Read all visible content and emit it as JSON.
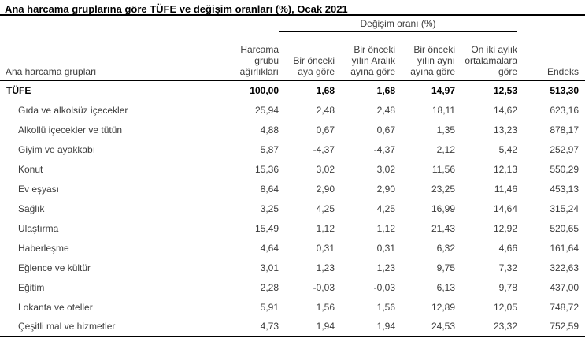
{
  "title": "Ana harcama gruplarına göre TÜFE ve değişim oranları (%), Ocak 2021",
  "colors": {
    "text": "#3c3c3c",
    "bold_text": "#000000",
    "background": "#ffffff",
    "rule": "#000000"
  },
  "table": {
    "group_header": "Değişim oranı (%)",
    "col_headers": {
      "groups": "Ana harcama grupları",
      "weights": "Harcama\ngrubu\nağırlıkları",
      "prev_month": "Bir önceki\naya göre",
      "prev_december": "Bir önceki\nyılın Aralık\nayına göre",
      "same_month_prev_year": "Bir önceki\nyılın aynı\nayına göre",
      "twelve_month_avg": "On iki aylık\nortalamalara\ngöre",
      "index": "Endeks"
    },
    "rows": [
      {
        "label": "TÜFE",
        "bold": true,
        "indent": false,
        "values": [
          "100,00",
          "1,68",
          "1,68",
          "14,97",
          "12,53",
          "513,30"
        ]
      },
      {
        "label": "Gıda ve alkolsüz içecekler",
        "bold": false,
        "indent": true,
        "values": [
          "25,94",
          "2,48",
          "2,48",
          "18,11",
          "14,62",
          "623,16"
        ]
      },
      {
        "label": "Alkollü içecekler ve tütün",
        "bold": false,
        "indent": true,
        "values": [
          "4,88",
          "0,67",
          "0,67",
          "1,35",
          "13,23",
          "878,17"
        ]
      },
      {
        "label": "Giyim ve ayakkabı",
        "bold": false,
        "indent": true,
        "values": [
          "5,87",
          "-4,37",
          "-4,37",
          "2,12",
          "5,42",
          "252,97"
        ]
      },
      {
        "label": "Konut",
        "bold": false,
        "indent": true,
        "values": [
          "15,36",
          "3,02",
          "3,02",
          "11,56",
          "12,13",
          "550,29"
        ]
      },
      {
        "label": "Ev eşyası",
        "bold": false,
        "indent": true,
        "values": [
          "8,64",
          "2,90",
          "2,90",
          "23,25",
          "11,46",
          "453,13"
        ]
      },
      {
        "label": "Sağlık",
        "bold": false,
        "indent": true,
        "values": [
          "3,25",
          "4,25",
          "4,25",
          "16,99",
          "14,64",
          "315,24"
        ]
      },
      {
        "label": "Ulaştırma",
        "bold": false,
        "indent": true,
        "values": [
          "15,49",
          "1,12",
          "1,12",
          "21,43",
          "12,92",
          "520,65"
        ]
      },
      {
        "label": "Haberleşme",
        "bold": false,
        "indent": true,
        "values": [
          "4,64",
          "0,31",
          "0,31",
          "6,32",
          "4,66",
          "161,64"
        ]
      },
      {
        "label": "Eğlence ve kültür",
        "bold": false,
        "indent": true,
        "values": [
          "3,01",
          "1,23",
          "1,23",
          "9,75",
          "7,32",
          "322,63"
        ]
      },
      {
        "label": "Eğitim",
        "bold": false,
        "indent": true,
        "values": [
          "2,28",
          "-0,03",
          "-0,03",
          "6,13",
          "9,78",
          "437,00"
        ]
      },
      {
        "label": "Lokanta ve oteller",
        "bold": false,
        "indent": true,
        "values": [
          "5,91",
          "1,56",
          "1,56",
          "12,89",
          "12,05",
          "748,72"
        ]
      },
      {
        "label": "Çeşitli mal ve hizmetler",
        "bold": false,
        "indent": true,
        "values": [
          "4,73",
          "1,94",
          "1,94",
          "24,53",
          "23,32",
          "752,59"
        ]
      }
    ]
  }
}
